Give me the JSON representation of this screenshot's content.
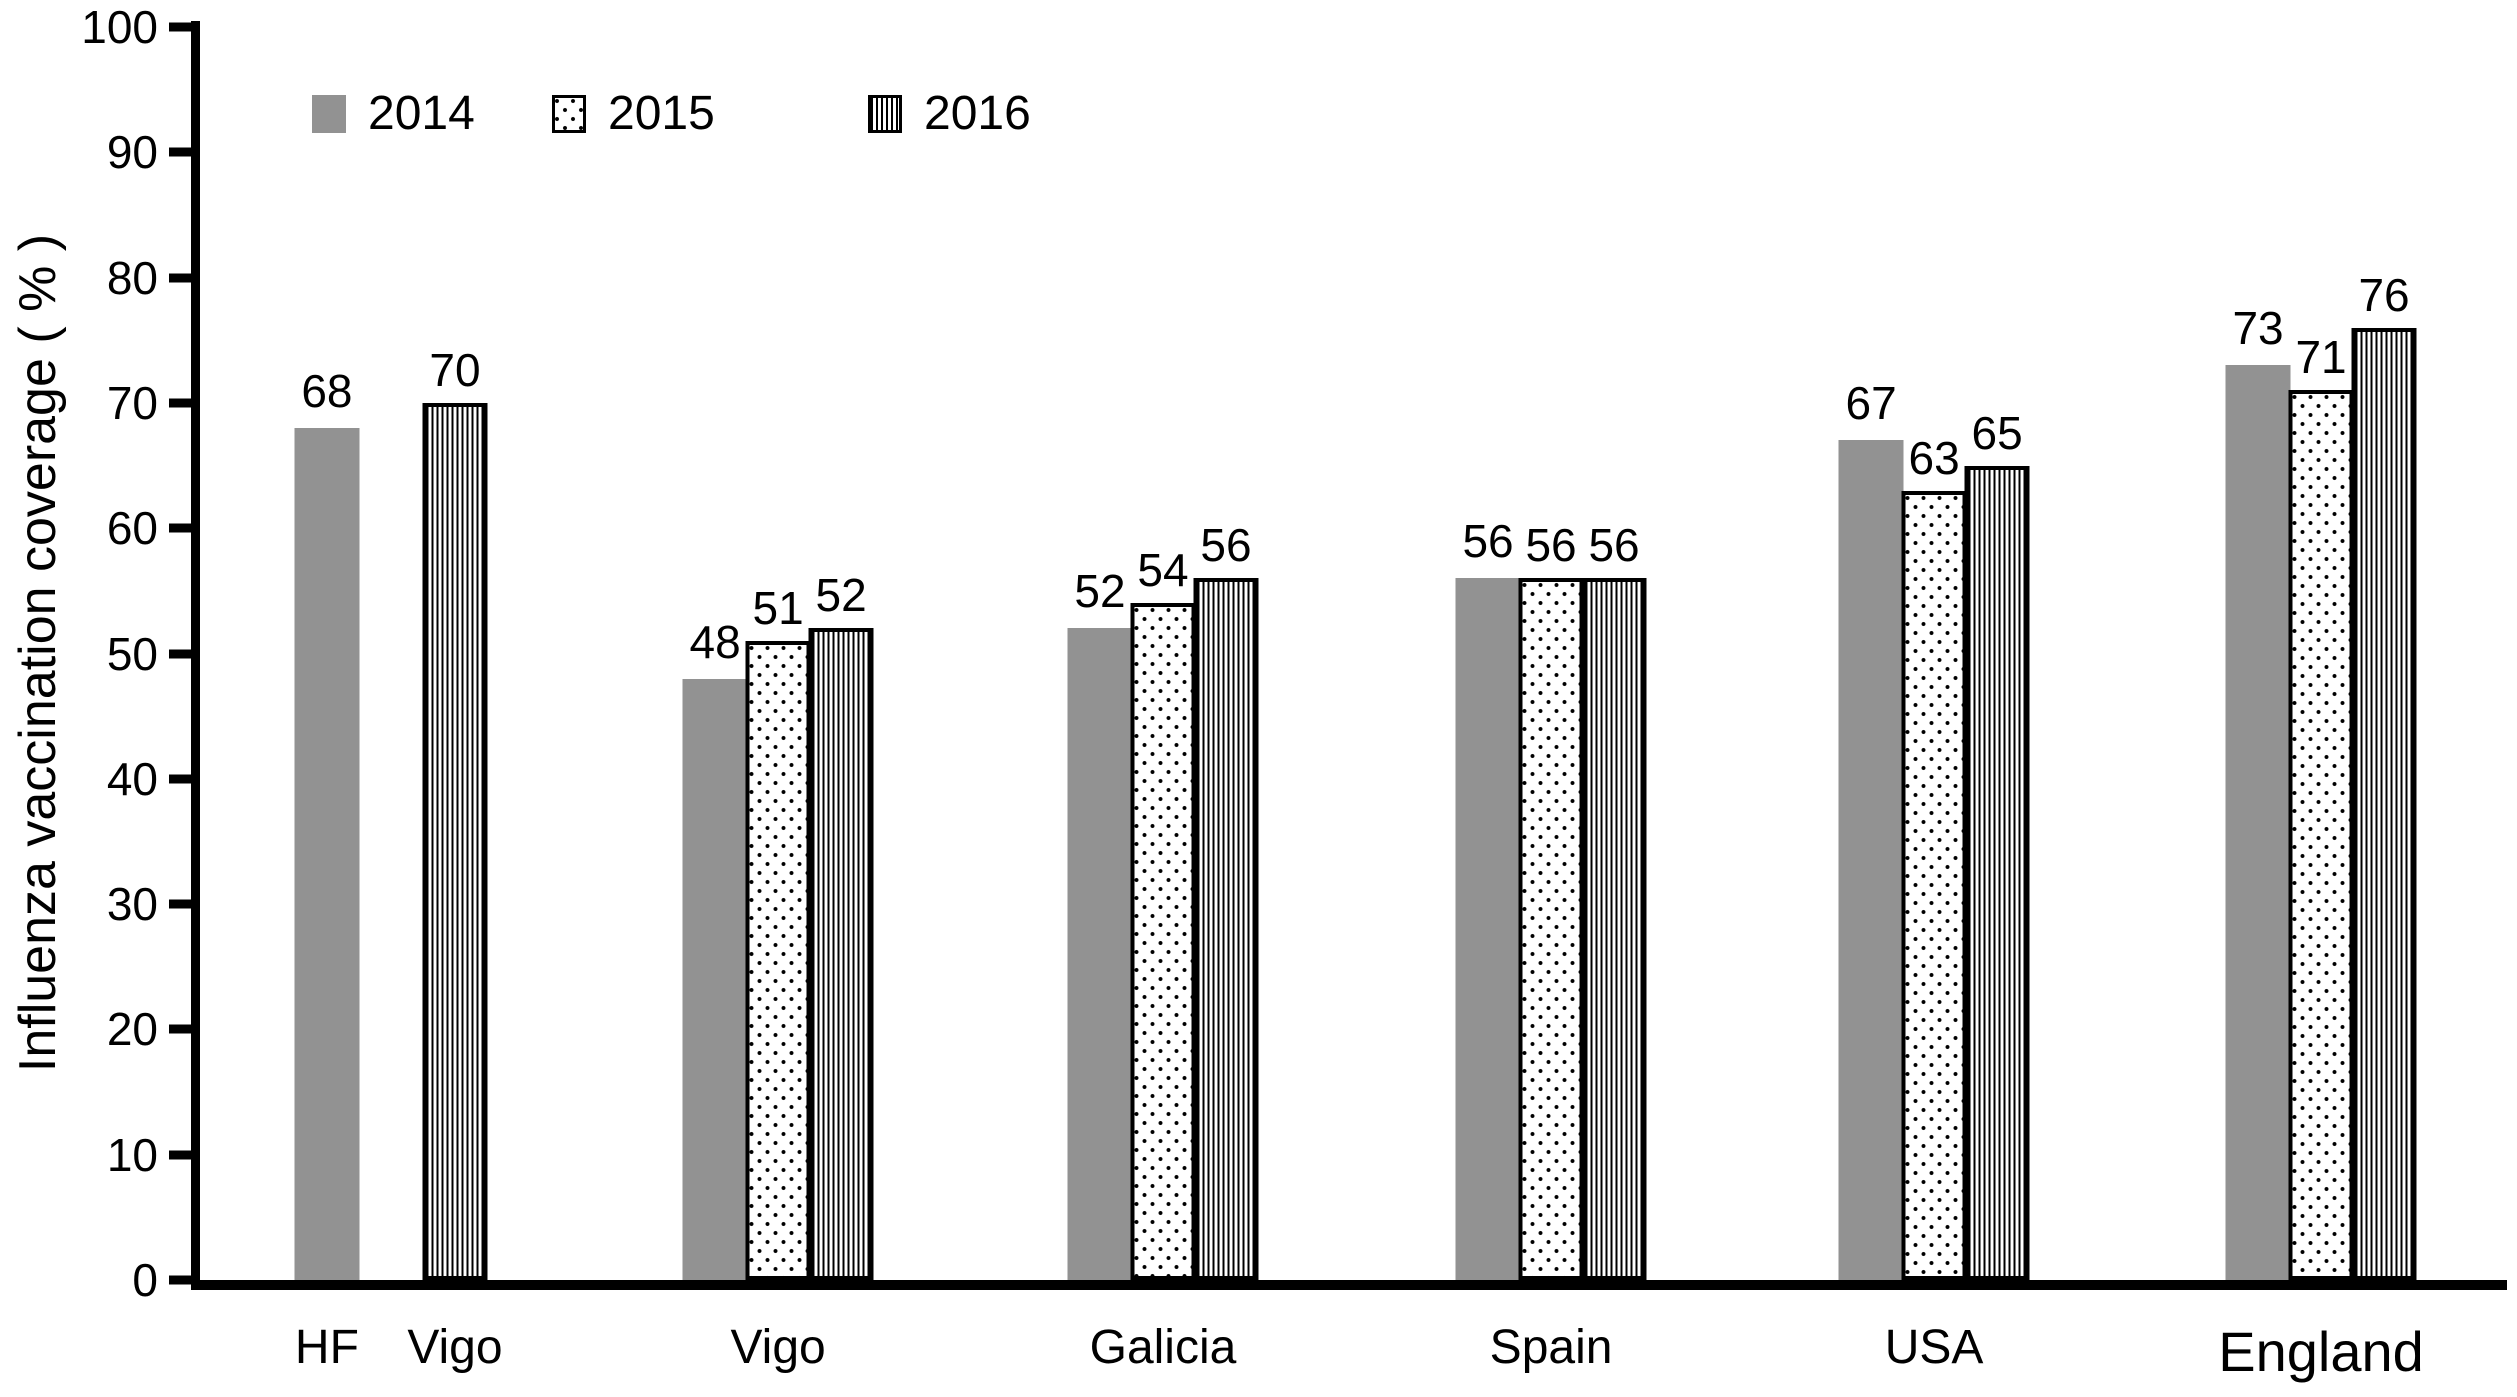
{
  "chart_data": {
    "type": "bar",
    "title": "",
    "ylabel": "Influenza vaccination coverage ( % )",
    "xlabel": "",
    "ylim": [
      0,
      100
    ],
    "yticks": [
      0,
      10,
      20,
      30,
      40,
      50,
      60,
      70,
      80,
      90,
      100
    ],
    "grid": false,
    "legend_position": "top-left",
    "bar_value_labels": true,
    "categories": [
      "HF",
      "Vigo",
      "Vigo",
      "Galicia",
      "Spain",
      "USA",
      "England"
    ],
    "series": [
      {
        "name": "2014",
        "pattern": "solid",
        "color": "#929292",
        "values": [
          68,
          null,
          48,
          52,
          56,
          67,
          73
        ]
      },
      {
        "name": "2015",
        "pattern": "dots",
        "color": "#ffffff",
        "values": [
          null,
          null,
          51,
          54,
          56,
          63,
          71
        ]
      },
      {
        "name": "2016",
        "pattern": "stripes",
        "color": "#ffffff",
        "values": [
          null,
          70,
          52,
          56,
          56,
          65,
          76
        ]
      }
    ]
  }
}
